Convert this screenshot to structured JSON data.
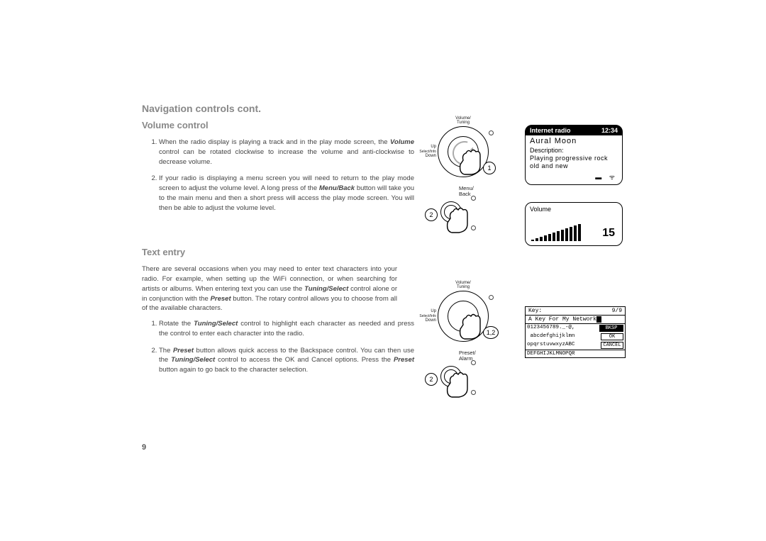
{
  "page_number": "9",
  "h1": "Navigation controls cont.",
  "volume": {
    "heading": "Volume control",
    "items": [
      "When the radio display is playing a track and in the play mode screen, the <b><i>Volume</i></b> control can be rotated clockwise to increase the volume and anti-clockwise to decrease volume.",
      "If your radio is displaying a menu screen you will need to return to the play mode screen to adjust the volume level. A long press of the <b><i>Menu/Back</i></b> button will take you to the main menu and then a short press will access the play mode screen. You will then be able to adjust the volume level."
    ]
  },
  "text_entry": {
    "heading": "Text entry",
    "intro": "There are several occasions when you may need to enter text characters into your radio. For example, when setting up the WiFi connection, or when searching for artists or albums. When entering text you can use the <b><i>Tuning/Select</i></b> control alone or in conjunction with the <b><i>Preset</i></b> button. The rotary control allows you to choose from all of the available characters.",
    "items": [
      "Rotate the <b><i>Tuning/Select</i></b> control to highlight each character as needed and press the control to enter each character into the radio.",
      "The <b><i>Preset</i></b> button allows quick access to the Backspace control. You can then use the <b><i>Tuning/Select</i></b> control to access the OK and Cancel options. Press the <b><i>Preset</i></b> button again to go back to the character selection."
    ]
  },
  "diagrams": {
    "dial_top_label": "Volume/\nTuning",
    "dial_left_top": "Up",
    "dial_left_mid": "Select/Info",
    "dial_left_bot": "Down",
    "badge_1": "1",
    "menu_back_label": "Menu/\nBack",
    "badge_2": "2",
    "badge_12": "1,2",
    "preset_label": "Preset/\nAlarm"
  },
  "screens": {
    "radio": {
      "hdr_left": "Internet radio",
      "hdr_right": "12:34",
      "title": "Aural Moon",
      "desc_label": "Description:",
      "desc_text": "Playing progressive rock old and new"
    },
    "volume": {
      "label": "Volume",
      "value": "15",
      "bars": [
        2,
        4,
        6,
        8,
        10,
        12,
        14,
        16,
        18,
        20,
        22,
        24
      ]
    },
    "key": {
      "hdr_left": "Key:",
      "hdr_right": "9/9",
      "input": "A Key For My Network",
      "row1_chars": "0123456789._-@,",
      "row1_btn": "BKSP",
      "row2_chars": " abcdefghijklmn",
      "row2_btn": "OK",
      "row3_chars": "opqrstuvwxyzABC",
      "row3_btn": "CANCEL",
      "row4_chars": "DEFGHIJKLMNOPQR"
    }
  },
  "colors": {
    "heading": "#888888",
    "body": "#444444",
    "line": "#000000"
  }
}
